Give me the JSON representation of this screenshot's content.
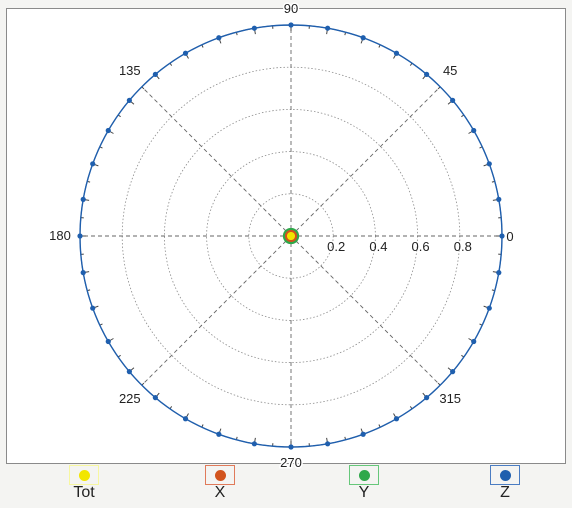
{
  "chart_data": {
    "type": "polar-line",
    "title": "",
    "r_ticks": [
      0,
      0.2,
      0.4,
      0.6,
      0.8
    ],
    "r_tick_labels": [
      "0.2",
      "0.4",
      "0.6",
      "0.8"
    ],
    "rlim": [
      0,
      1
    ],
    "angle_labels": [
      "0",
      "45",
      "90",
      "135",
      "180",
      "225",
      "270",
      "315"
    ],
    "angle_label_values": [
      0,
      45,
      90,
      135,
      180,
      225,
      270,
      315
    ],
    "grid": true,
    "legend_position": "bottom",
    "series": [
      {
        "name": "Tot",
        "color": "#f2e600",
        "r": 0.01,
        "angle_step_deg": 10
      },
      {
        "name": "X",
        "color": "#d2541e",
        "r": 0.02,
        "angle_step_deg": 10
      },
      {
        "name": "Y",
        "color": "#2fa84a",
        "r": 0.03,
        "angle_step_deg": 10
      },
      {
        "name": "Z",
        "color": "#1f5fae",
        "r": 1.0,
        "angle_step_deg": 10
      }
    ],
    "legend_box_colors": [
      "#f7f7a0",
      "#e07a5a",
      "#66c77a",
      "#4a7cc2"
    ]
  }
}
